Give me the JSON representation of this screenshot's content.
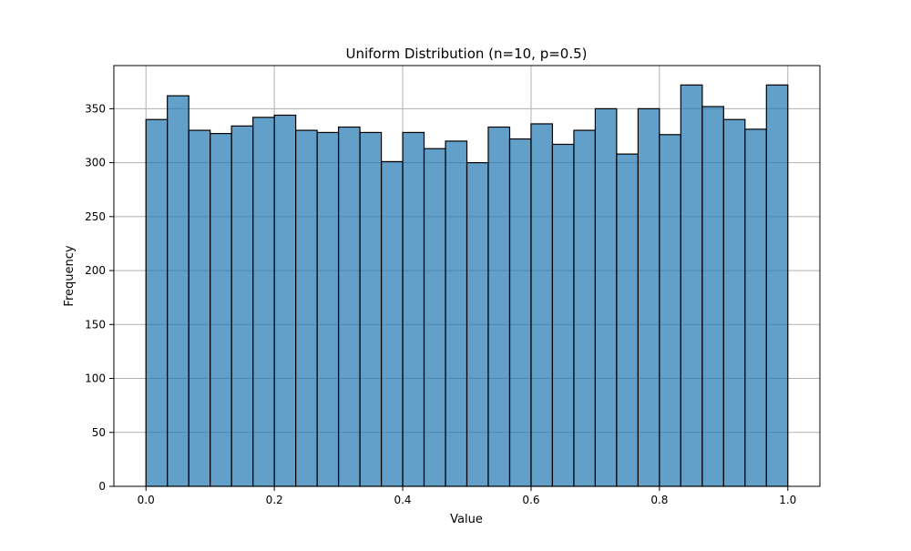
{
  "chart_data": {
    "type": "bar",
    "title": "Uniform Distribution (n=10, p=0.5)",
    "xlabel": "Value",
    "ylabel": "Frequency",
    "xlim": [
      -0.05,
      1.05
    ],
    "ylim": [
      0,
      390
    ],
    "bin_edges": [
      0.0,
      0.0333,
      0.0667,
      0.1,
      0.1333,
      0.1667,
      0.2,
      0.2333,
      0.2667,
      0.3,
      0.3333,
      0.3667,
      0.4,
      0.4333,
      0.4667,
      0.5,
      0.5333,
      0.5667,
      0.6,
      0.6333,
      0.6667,
      0.7,
      0.7333,
      0.7667,
      0.8,
      0.8333,
      0.8667,
      0.9,
      0.9333,
      0.9667,
      1.0
    ],
    "values": [
      340,
      362,
      330,
      327,
      334,
      342,
      344,
      330,
      328,
      333,
      328,
      301,
      328,
      313,
      320,
      300,
      333,
      322,
      336,
      317,
      330,
      350,
      308,
      350,
      326,
      372,
      352,
      340,
      331,
      372
    ],
    "x_ticks": [
      0.0,
      0.2,
      0.4,
      0.6,
      0.8,
      1.0
    ],
    "x_tick_labels": [
      "0.0",
      "0.2",
      "0.4",
      "0.6",
      "0.8",
      "1.0"
    ],
    "y_ticks": [
      0,
      50,
      100,
      150,
      200,
      250,
      300,
      350
    ],
    "y_tick_labels": [
      "0",
      "50",
      "100",
      "150",
      "200",
      "250",
      "300",
      "350"
    ],
    "grid": true,
    "colors": {
      "bar_fill": "#1f77b4",
      "bar_opacity": 0.7,
      "bar_edge": "#000000",
      "grid": "#b0b0b0",
      "axis": "#000000"
    }
  }
}
